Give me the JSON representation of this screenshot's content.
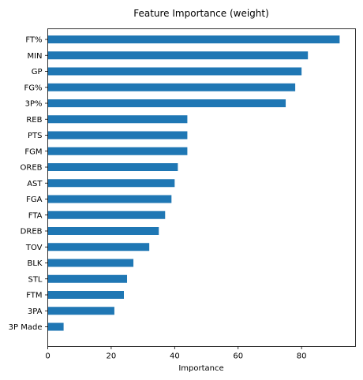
{
  "chart_data": {
    "type": "bar",
    "orientation": "horizontal",
    "title": "Feature Importance (weight)",
    "xlabel": "Importance",
    "ylabel": "",
    "categories": [
      "FT%",
      "MIN",
      "GP",
      "FG%",
      "3P%",
      "REB",
      "PTS",
      "FGM",
      "OREB",
      "AST",
      "FGA",
      "FTA",
      "DREB",
      "TOV",
      "BLK",
      "STL",
      "FTM",
      "3PA",
      "3P Made"
    ],
    "values": [
      92,
      82,
      80,
      78,
      75,
      44,
      44,
      44,
      41,
      40,
      39,
      37,
      35,
      32,
      27,
      25,
      24,
      21,
      5
    ],
    "xlim": [
      0,
      97
    ],
    "xticks": [
      0,
      20,
      40,
      60,
      80
    ],
    "bar_color": "#1f77b4",
    "grid": false,
    "legend": "none"
  }
}
